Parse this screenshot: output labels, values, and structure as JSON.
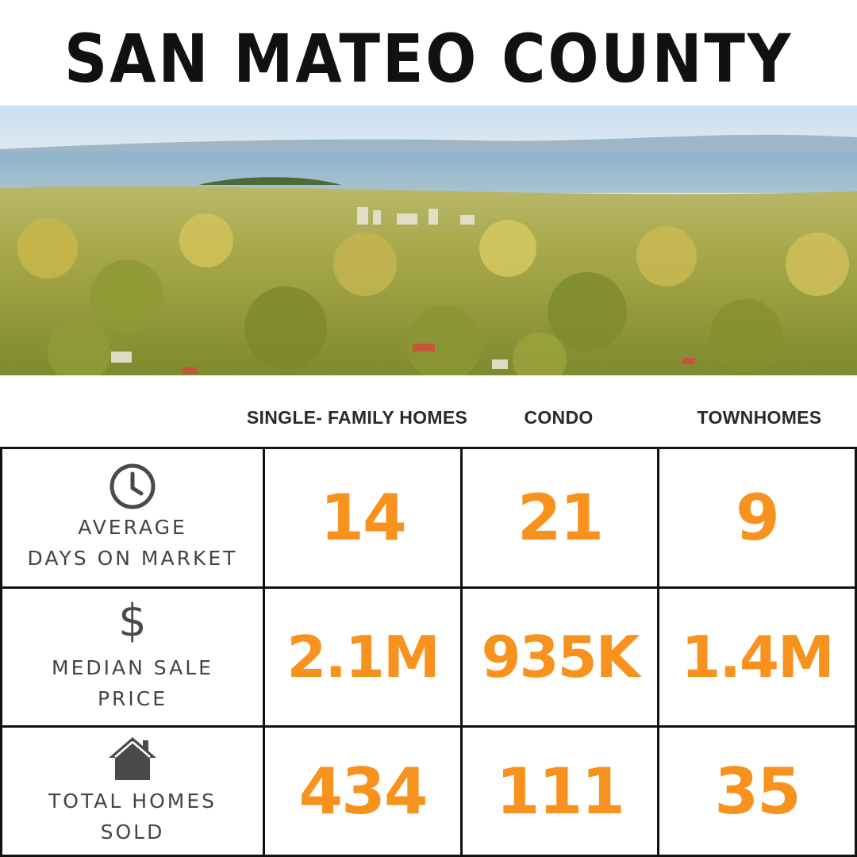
{
  "title": "SAN MATEO COUNTY",
  "columns": [
    "SINGLE- FAMILY HOMES",
    "CONDO",
    "TOWNHOMES"
  ],
  "rows": [
    {
      "icon": "clock-icon",
      "label_line1": "AVERAGE",
      "label_line2": "DAYS ON MARKET",
      "values": [
        "14",
        "21",
        "9"
      ]
    },
    {
      "icon": "dollar-icon",
      "icon_glyph": "$",
      "label_line1": "MEDIAN SALE",
      "label_line2": "PRICE",
      "values": [
        "2.1M",
        "935K",
        "1.4M"
      ]
    },
    {
      "icon": "house-icon",
      "label_line1": "TOTAL HOMES",
      "label_line2": "SOLD",
      "values": [
        "434",
        "111",
        "35"
      ]
    }
  ],
  "colors": {
    "accent": "#f7921e",
    "text": "#111111",
    "label": "#444444"
  },
  "photo": {
    "icon": "aerial-city-photo"
  }
}
